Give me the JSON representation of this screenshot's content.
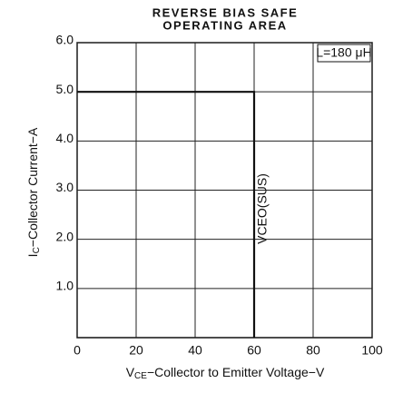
{
  "chart_data": {
    "type": "line",
    "title": [
      "REVERSE BIAS SAFE",
      "OPERATING AREA"
    ],
    "x_label": {
      "main": "V",
      "sub": "CE",
      "rest": "−Collector to Emitter Voltage−V"
    },
    "y_label": {
      "main": "I",
      "sub": "C",
      "rest": "−Collector Current−A"
    },
    "annotations": [
      "L=180 μH",
      "VCEO(SUS)"
    ],
    "x": [
      0,
      60,
      60
    ],
    "series": [
      {
        "color": "#111111",
        "values": [
          5,
          5,
          0
        ]
      }
    ],
    "xlim": [
      0,
      100
    ],
    "ylim": [
      0,
      6
    ],
    "xticks": [
      0,
      20,
      40,
      60,
      80,
      100
    ],
    "yticks": [
      {
        "value": 1,
        "label": "1.0"
      },
      {
        "value": 2,
        "label": "2.0"
      },
      {
        "value": 3,
        "label": "3.0"
      },
      {
        "value": 4,
        "label": "4.0"
      },
      {
        "value": 5,
        "label": "5.0"
      },
      {
        "value": 6,
        "label": "6.0"
      }
    ],
    "grid": true
  }
}
